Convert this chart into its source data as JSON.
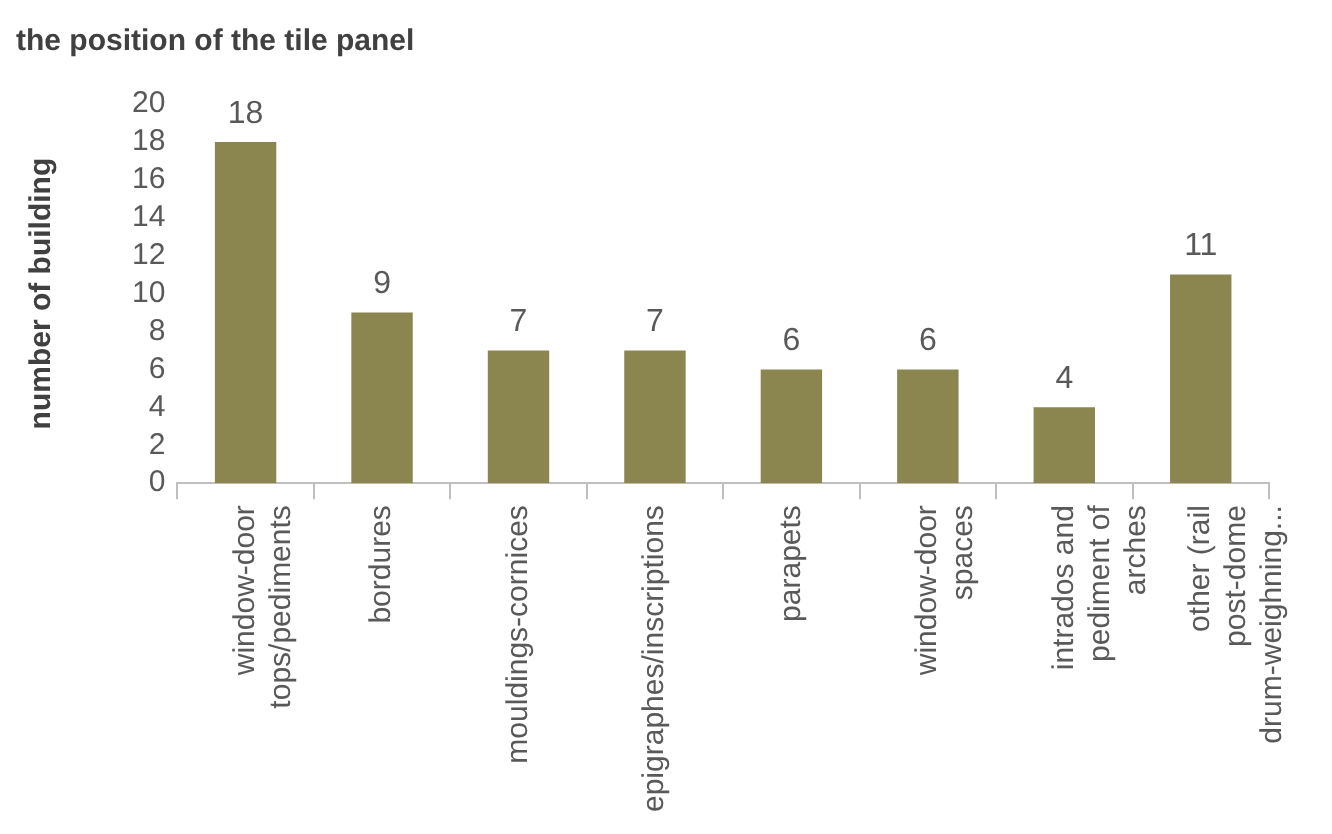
{
  "chart_data": {
    "type": "bar",
    "title": "the position of the tile panel",
    "ylabel": "number of building",
    "categories": [
      "window-door tops/pediments",
      "bordures",
      "mouldings-cornices",
      "epigraphes/inscriptions",
      "parapets",
      "window-door spaces",
      "intrados and pediment of arches",
      "other (rail post-dome drum-weighning..."
    ],
    "values": [
      18,
      9,
      7,
      7,
      6,
      6,
      4,
      11
    ],
    "color": "#8b8550",
    "ylim": [
      0,
      20
    ],
    "yticks": [
      0,
      2,
      4,
      6,
      8,
      10,
      12,
      14,
      16,
      18,
      20
    ],
    "grid": false,
    "legend": false,
    "data_labels": true
  }
}
